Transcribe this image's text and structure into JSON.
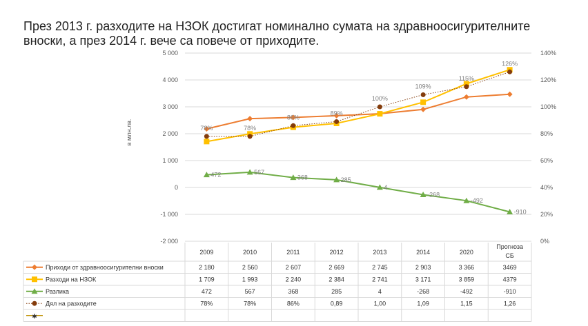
{
  "title": "През 2013 г. разходите на НЗОК достигат номинално сумата на здравноосигурителните вноски, а през 2014 г. вече са повече от приходите.",
  "chart_data": {
    "type": "line",
    "title": "През 2013 г. разходите на НЗОК достигат номинално сумата на здравноосигурителните вноски, а през 2014 г. вече са повече от приходите.",
    "ylabel": "в млн.лв.",
    "categories": [
      "2009",
      "2010",
      "2011",
      "2012",
      "2013",
      "2014",
      "2020",
      "Прогноза СБ"
    ],
    "ylim": [
      -2000,
      5000
    ],
    "y_ticks": [
      "5 000",
      "4 000",
      "3 000",
      "2 000",
      "1 000",
      "0",
      "-1 000",
      "-2 000"
    ],
    "y2lim": [
      0,
      140
    ],
    "y2_ticks": [
      "140%",
      "120%",
      "100%",
      "80%",
      "60%",
      "40%",
      "20%",
      "0%"
    ],
    "series": [
      {
        "name": "Приходи от здравноосигурителни вноски",
        "axis": "left",
        "color": "#ED7D31",
        "marker": "diamond",
        "values": [
          2180,
          2560,
          2607,
          2669,
          2745,
          2903,
          3366,
          3469
        ],
        "table": [
          "2 180",
          "2 560",
          "2 607",
          "2 669",
          "2 745",
          "2 903",
          "3 366",
          "3469"
        ]
      },
      {
        "name": "Разходи на НЗОК",
        "axis": "left",
        "color": "#FFC000",
        "marker": "square",
        "values": [
          1709,
          1993,
          2240,
          2384,
          2741,
          3171,
          3859,
          4379
        ],
        "table": [
          "1 709",
          "1 993",
          "2 240",
          "2 384",
          "2 741",
          "3 171",
          "3 859",
          "4379"
        ]
      },
      {
        "name": "Разлика",
        "axis": "left",
        "color": "#70AD47",
        "marker": "triangle",
        "values": [
          472,
          567,
          368,
          285,
          4,
          -268,
          -492,
          -910
        ],
        "labels": [
          "472",
          "567",
          "368",
          "285",
          "4",
          "-268",
          "-492",
          "-910"
        ],
        "table": [
          "472",
          "567",
          "368",
          "285",
          "4",
          "-268",
          "-492",
          "-910"
        ]
      },
      {
        "name": "Дял на разходите",
        "axis": "right",
        "color": "#843C0C",
        "marker": "circle",
        "dotted": true,
        "values": [
          78,
          78,
          86,
          89,
          100,
          109,
          115,
          126
        ],
        "labels": [
          "78%",
          "78%",
          "86%",
          "89%",
          "100%",
          "109%",
          "115%",
          "126%"
        ],
        "table": [
          "78%",
          "78%",
          "86%",
          "0,89",
          "1,00",
          "1,09",
          "1,15",
          "1,26"
        ]
      }
    ]
  }
}
